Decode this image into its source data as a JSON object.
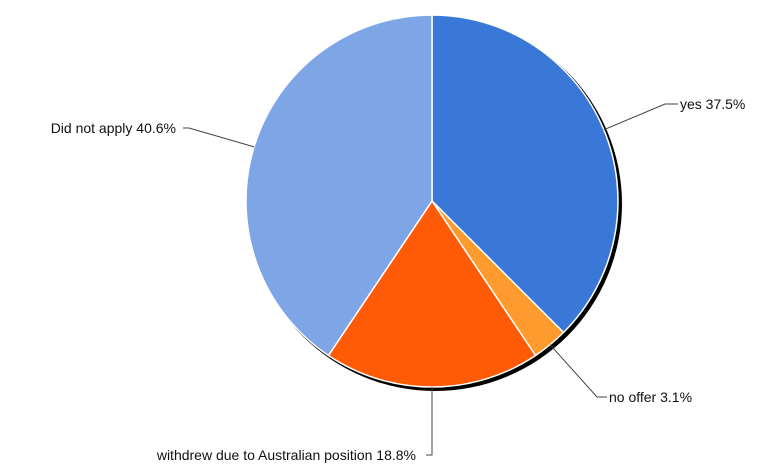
{
  "chart_data": {
    "type": "pie",
    "title": "",
    "slices": [
      {
        "label": "yes",
        "value": 37.5,
        "display": "yes 37.5%",
        "color": "#3a78d8"
      },
      {
        "label": "no offer",
        "value": 3.1,
        "display": "no offer 3.1%",
        "color": "#ff9a2e"
      },
      {
        "label": "withdrew due to Australian position",
        "value": 18.8,
        "display": "withdrew due to Australian position 18.8%",
        "color": "#ff5a05"
      },
      {
        "label": "Did not apply",
        "value": 40.6,
        "display": "Did not apply 40.6%",
        "color": "#7ea6e6"
      }
    ],
    "start_angle": "12 o'clock",
    "direction": "clockwise",
    "legend": "none",
    "labels": "outside with leader lines"
  }
}
